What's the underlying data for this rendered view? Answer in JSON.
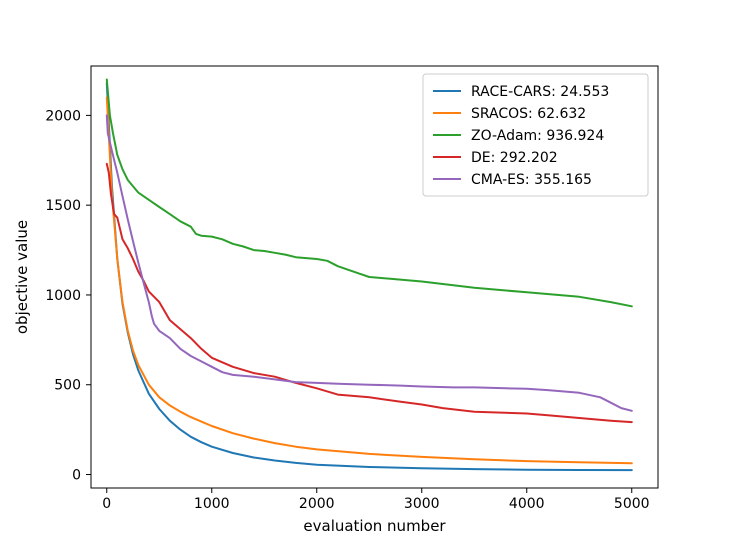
{
  "chart_data": {
    "type": "line",
    "title": "",
    "xlabel": "evaluation number",
    "ylabel": "objective value",
    "xlim": [
      -150,
      5250
    ],
    "ylim": [
      -75,
      2275
    ],
    "xticks": [
      0,
      1000,
      2000,
      3000,
      4000,
      5000
    ],
    "xtick_labels": [
      "0",
      "1000",
      "2000",
      "3000",
      "4000",
      "5000"
    ],
    "yticks": [
      0,
      500,
      1000,
      1500,
      2000
    ],
    "ytick_labels": [
      "0",
      "500",
      "1000",
      "1500",
      "2000"
    ],
    "grid": false,
    "legend_position": "top-right",
    "series": [
      {
        "name": "RACE-CARS: 24.553",
        "color": "#1f77b4",
        "x": [
          0,
          50,
          100,
          150,
          200,
          250,
          300,
          400,
          500,
          600,
          700,
          800,
          900,
          1000,
          1200,
          1400,
          1600,
          1800,
          2000,
          2500,
          3000,
          3500,
          4000,
          4500,
          5000
        ],
        "y": [
          2180,
          1600,
          1200,
          950,
          790,
          670,
          580,
          450,
          365,
          300,
          250,
          210,
          180,
          155,
          120,
          95,
          78,
          65,
          55,
          42,
          35,
          30,
          27,
          25,
          24.553
        ]
      },
      {
        "name": "SRACOS: 62.632",
        "color": "#ff7f0e",
        "x": [
          0,
          50,
          100,
          150,
          200,
          250,
          300,
          400,
          500,
          600,
          700,
          800,
          900,
          1000,
          1200,
          1400,
          1600,
          1800,
          2000,
          2500,
          3000,
          3500,
          4000,
          4500,
          5000
        ],
        "y": [
          2100,
          1550,
          1200,
          960,
          800,
          690,
          610,
          500,
          430,
          385,
          350,
          320,
          295,
          270,
          230,
          200,
          175,
          155,
          140,
          115,
          98,
          85,
          75,
          68,
          62.632
        ]
      },
      {
        "name": "ZO-Adam: 936.924",
        "color": "#2ca02c",
        "x": [
          0,
          30,
          60,
          100,
          150,
          200,
          300,
          400,
          500,
          600,
          700,
          800,
          850,
          900,
          1000,
          1100,
          1200,
          1300,
          1400,
          1500,
          1600,
          1700,
          1800,
          1900,
          2000,
          2100,
          2200,
          2300,
          2400,
          2500,
          2600,
          2700,
          3000,
          3500,
          4000,
          4500,
          4800,
          5000
        ],
        "y": [
          2200,
          2000,
          1900,
          1780,
          1700,
          1640,
          1570,
          1530,
          1490,
          1450,
          1410,
          1380,
          1340,
          1330,
          1325,
          1310,
          1285,
          1270,
          1250,
          1245,
          1235,
          1225,
          1210,
          1205,
          1200,
          1190,
          1160,
          1140,
          1120,
          1100,
          1095,
          1090,
          1075,
          1040,
          1015,
          990,
          960,
          936.924
        ]
      },
      {
        "name": "DE: 292.202",
        "color": "#d62728",
        "x": [
          0,
          20,
          40,
          70,
          100,
          150,
          200,
          250,
          300,
          350,
          400,
          500,
          600,
          700,
          800,
          900,
          1000,
          1200,
          1400,
          1600,
          1800,
          2000,
          2200,
          2500,
          2800,
          3000,
          3200,
          3500,
          4000,
          4200,
          4500,
          4800,
          5000
        ],
        "y": [
          1730,
          1680,
          1560,
          1450,
          1430,
          1310,
          1260,
          1200,
          1130,
          1080,
          1020,
          960,
          860,
          810,
          760,
          700,
          650,
          600,
          565,
          545,
          510,
          480,
          445,
          430,
          405,
          390,
          370,
          350,
          340,
          330,
          315,
          300,
          292.202
        ]
      },
      {
        "name": "CMA-ES: 355.165",
        "color": "#9467bd",
        "x": [
          0,
          10,
          30,
          50,
          100,
          150,
          200,
          250,
          300,
          350,
          400,
          430,
          450,
          500,
          600,
          700,
          800,
          900,
          1000,
          1100,
          1200,
          1400,
          1600,
          1800,
          2000,
          2200,
          2500,
          2800,
          3000,
          3300,
          3500,
          3800,
          4000,
          4200,
          4500,
          4700,
          4800,
          4900,
          5000
        ],
        "y": [
          2000,
          1900,
          1850,
          1800,
          1680,
          1550,
          1420,
          1300,
          1180,
          1070,
          960,
          880,
          840,
          800,
          760,
          700,
          660,
          630,
          600,
          570,
          555,
          545,
          530,
          515,
          510,
          505,
          500,
          495,
          490,
          485,
          485,
          480,
          478,
          470,
          455,
          430,
          400,
          370,
          355.165
        ]
      }
    ]
  }
}
